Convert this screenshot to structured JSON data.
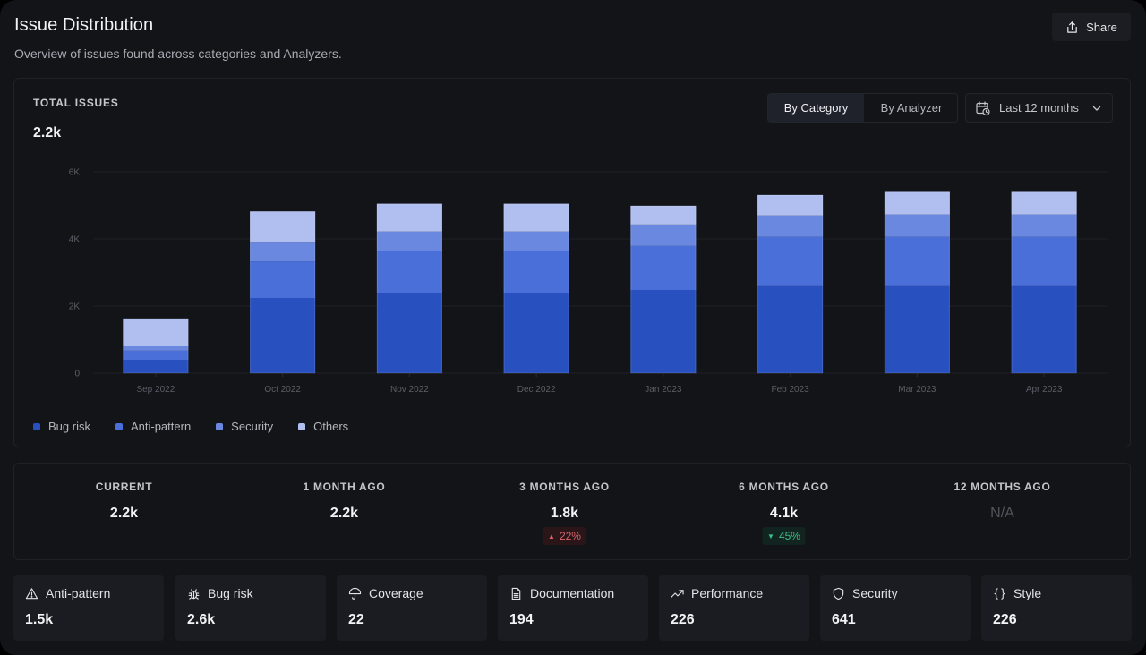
{
  "header": {
    "title": "Issue Distribution",
    "subtitle": "Overview of issues found across categories and Analyzers.",
    "share_label": "Share",
    "share_icon": "share-icon"
  },
  "chart_panel": {
    "total_label": "TOTAL ISSUES",
    "total_value": "2.2k",
    "view_toggle": [
      {
        "label": "By Category",
        "active": true
      },
      {
        "label": "By Analyzer",
        "active": false
      }
    ],
    "range_select": {
      "value": "Last 12 months",
      "icon": "calendar-clock-icon"
    }
  },
  "chart_data": {
    "type": "bar",
    "stacked": true,
    "title": "",
    "xlabel": "",
    "ylabel": "",
    "categories": [
      "Sep 2022",
      "Oct 2022",
      "Nov 2022",
      "Dec 2022",
      "Jan 2023",
      "Feb 2023",
      "Mar 2023",
      "Apr 2023"
    ],
    "series": [
      {
        "name": "Bug risk",
        "color": "#2850bf",
        "values": [
          400,
          2240,
          2400,
          2400,
          2480,
          2590,
          2590,
          2590
        ]
      },
      {
        "name": "Anti-pattern",
        "color": "#4a6fd8",
        "values": [
          270,
          1090,
          1230,
          1230,
          1310,
          1470,
          1470,
          1470
        ]
      },
      {
        "name": "Security",
        "color": "#6b88e0",
        "values": [
          130,
          560,
          590,
          590,
          640,
          640,
          670,
          670
        ]
      },
      {
        "name": "Others",
        "color": "#b0bff0",
        "values": [
          830,
          930,
          830,
          830,
          560,
          610,
          670,
          670
        ]
      }
    ],
    "ylim": [
      0,
      6000
    ],
    "yticks": [
      0,
      2000,
      4000,
      6000
    ],
    "ytick_labels": [
      "0",
      "2K",
      "4K",
      "6K"
    ],
    "grid": true,
    "legend_position": "bottom-left"
  },
  "comparison": [
    {
      "label": "CURRENT",
      "value": "2.2k"
    },
    {
      "label": "1 MONTH AGO",
      "value": "2.2k"
    },
    {
      "label": "3 MONTHS AGO",
      "value": "1.8k",
      "delta": "22%",
      "delta_dir": "up"
    },
    {
      "label": "6 MONTHS AGO",
      "value": "4.1k",
      "delta": "45%",
      "delta_dir": "down"
    },
    {
      "label": "12 MONTHS AGO",
      "value": "N/A",
      "na": true
    }
  ],
  "categories": [
    {
      "label": "Anti-pattern",
      "value": "1.5k",
      "icon": "warning-icon"
    },
    {
      "label": "Bug risk",
      "value": "2.6k",
      "icon": "bug-icon"
    },
    {
      "label": "Coverage",
      "value": "22",
      "icon": "umbrella-icon"
    },
    {
      "label": "Documentation",
      "value": "194",
      "icon": "document-icon"
    },
    {
      "label": "Performance",
      "value": "226",
      "icon": "trending-up-icon"
    },
    {
      "label": "Security",
      "value": "641",
      "icon": "shield-icon"
    },
    {
      "label": "Style",
      "value": "226",
      "icon": "braces-icon"
    }
  ],
  "colors": {
    "background": "#131418",
    "card": "#1a1c21",
    "delta_up": "#d8636d",
    "delta_down": "#3fbf8a"
  }
}
